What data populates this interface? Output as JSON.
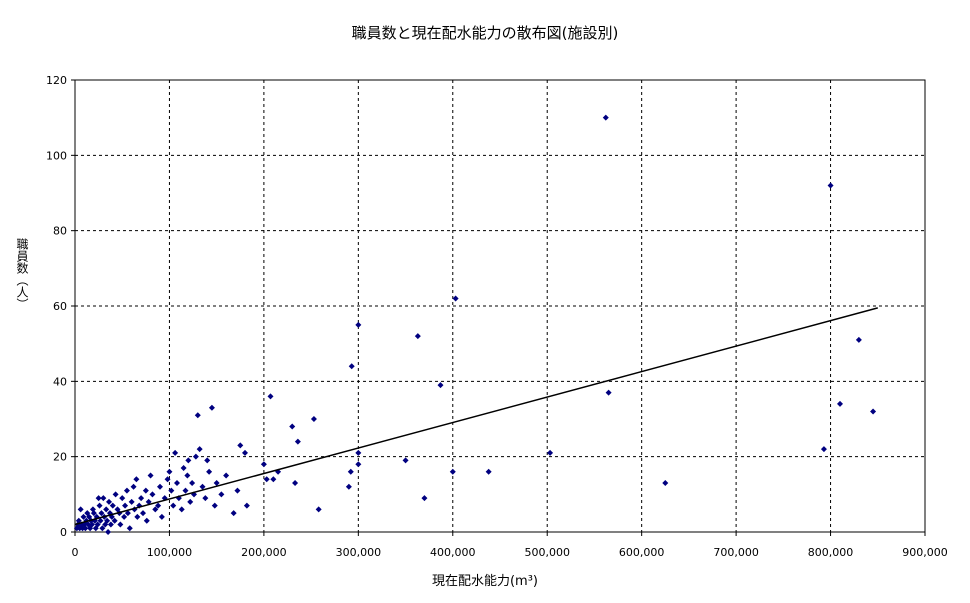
{
  "chart_data": {
    "type": "scatter",
    "title": "職員数と現在配水能力の散布図(施設別)",
    "xlabel": "現在配水能力(m³)",
    "ylabel": "職員数（人）",
    "xlim": [
      0,
      900000
    ],
    "ylim": [
      0,
      120
    ],
    "xticks": [
      0,
      100000,
      200000,
      300000,
      400000,
      500000,
      600000,
      700000,
      800000,
      900000
    ],
    "xtick_labels": [
      "0",
      "100,000",
      "200,000",
      "300,000",
      "400,000",
      "500,000",
      "600,000",
      "700,000",
      "800,000",
      "900,000"
    ],
    "yticks": [
      0,
      20,
      40,
      60,
      80,
      100,
      120
    ],
    "ytick_labels": [
      "0",
      "20",
      "40",
      "60",
      "80",
      "100",
      "120"
    ],
    "grid": true,
    "marker_color": "#000080",
    "trendline": {
      "x": [
        0,
        850000
      ],
      "y": [
        2,
        59.5
      ]
    },
    "series": [
      {
        "points": [
          [
            2000,
            1
          ],
          [
            3000,
            2
          ],
          [
            4000,
            3
          ],
          [
            5000,
            1
          ],
          [
            6000,
            6
          ],
          [
            7000,
            2
          ],
          [
            8000,
            1
          ],
          [
            9000,
            4
          ],
          [
            10000,
            2
          ],
          [
            11000,
            1
          ],
          [
            12000,
            3
          ],
          [
            13000,
            5
          ],
          [
            14000,
            2
          ],
          [
            15000,
            4
          ],
          [
            16000,
            1
          ],
          [
            17000,
            3
          ],
          [
            18000,
            2
          ],
          [
            19000,
            6
          ],
          [
            20000,
            5
          ],
          [
            21000,
            3
          ],
          [
            22000,
            1
          ],
          [
            23000,
            4
          ],
          [
            24000,
            2
          ],
          [
            25000,
            9
          ],
          [
            26000,
            7
          ],
          [
            27000,
            3
          ],
          [
            28000,
            5
          ],
          [
            29000,
            1
          ],
          [
            30000,
            9
          ],
          [
            31000,
            4
          ],
          [
            32000,
            2
          ],
          [
            33000,
            6
          ],
          [
            34000,
            3
          ],
          [
            35000,
            0
          ],
          [
            36000,
            8
          ],
          [
            37000,
            5
          ],
          [
            38000,
            2
          ],
          [
            39000,
            4
          ],
          [
            40000,
            7
          ],
          [
            42000,
            3
          ],
          [
            43000,
            10
          ],
          [
            45000,
            6
          ],
          [
            47000,
            5
          ],
          [
            48000,
            2
          ],
          [
            50000,
            9
          ],
          [
            52000,
            4
          ],
          [
            53000,
            7
          ],
          [
            55000,
            11
          ],
          [
            56000,
            5
          ],
          [
            58000,
            1
          ],
          [
            60000,
            8
          ],
          [
            62000,
            12
          ],
          [
            63000,
            6
          ],
          [
            65000,
            14
          ],
          [
            66000,
            4
          ],
          [
            68000,
            7
          ],
          [
            70000,
            9
          ],
          [
            72000,
            5
          ],
          [
            75000,
            11
          ],
          [
            76000,
            3
          ],
          [
            78000,
            8
          ],
          [
            80000,
            15
          ],
          [
            82000,
            10
          ],
          [
            85000,
            6
          ],
          [
            88000,
            7
          ],
          [
            90000,
            12
          ],
          [
            92000,
            4
          ],
          [
            95000,
            9
          ],
          [
            98000,
            14
          ],
          [
            100000,
            16
          ],
          [
            102000,
            11
          ],
          [
            104000,
            7
          ],
          [
            106000,
            21
          ],
          [
            108000,
            13
          ],
          [
            110000,
            9
          ],
          [
            113000,
            6
          ],
          [
            115000,
            17
          ],
          [
            117000,
            11
          ],
          [
            119000,
            15
          ],
          [
            120000,
            19
          ],
          [
            122000,
            8
          ],
          [
            124000,
            13
          ],
          [
            126000,
            10
          ],
          [
            128000,
            20
          ],
          [
            130000,
            31
          ],
          [
            132000,
            22
          ],
          [
            135000,
            12
          ],
          [
            138000,
            9
          ],
          [
            140000,
            19
          ],
          [
            142000,
            16
          ],
          [
            145000,
            33
          ],
          [
            148000,
            7
          ],
          [
            150000,
            13
          ],
          [
            155000,
            10
          ],
          [
            160000,
            15
          ],
          [
            168000,
            5
          ],
          [
            172000,
            11
          ],
          [
            175000,
            23
          ],
          [
            180000,
            21
          ],
          [
            182000,
            7
          ],
          [
            200000,
            18
          ],
          [
            203000,
            14
          ],
          [
            207000,
            36
          ],
          [
            210000,
            14
          ],
          [
            215000,
            16
          ],
          [
            230000,
            28
          ],
          [
            233000,
            13
          ],
          [
            236000,
            24
          ],
          [
            253000,
            30
          ],
          [
            258000,
            6
          ],
          [
            290000,
            12
          ],
          [
            292000,
            16
          ],
          [
            293000,
            44
          ],
          [
            300000,
            55
          ],
          [
            300000,
            21
          ],
          [
            300000,
            18
          ],
          [
            350000,
            19
          ],
          [
            363000,
            52
          ],
          [
            370000,
            9
          ],
          [
            387000,
            39
          ],
          [
            400000,
            16
          ],
          [
            403000,
            62
          ],
          [
            438000,
            16
          ],
          [
            503000,
            21
          ],
          [
            562000,
            110
          ],
          [
            565000,
            37
          ],
          [
            625000,
            13
          ],
          [
            793000,
            22
          ],
          [
            800000,
            92
          ],
          [
            810000,
            34
          ],
          [
            830000,
            51
          ],
          [
            845000,
            32
          ]
        ]
      }
    ]
  }
}
